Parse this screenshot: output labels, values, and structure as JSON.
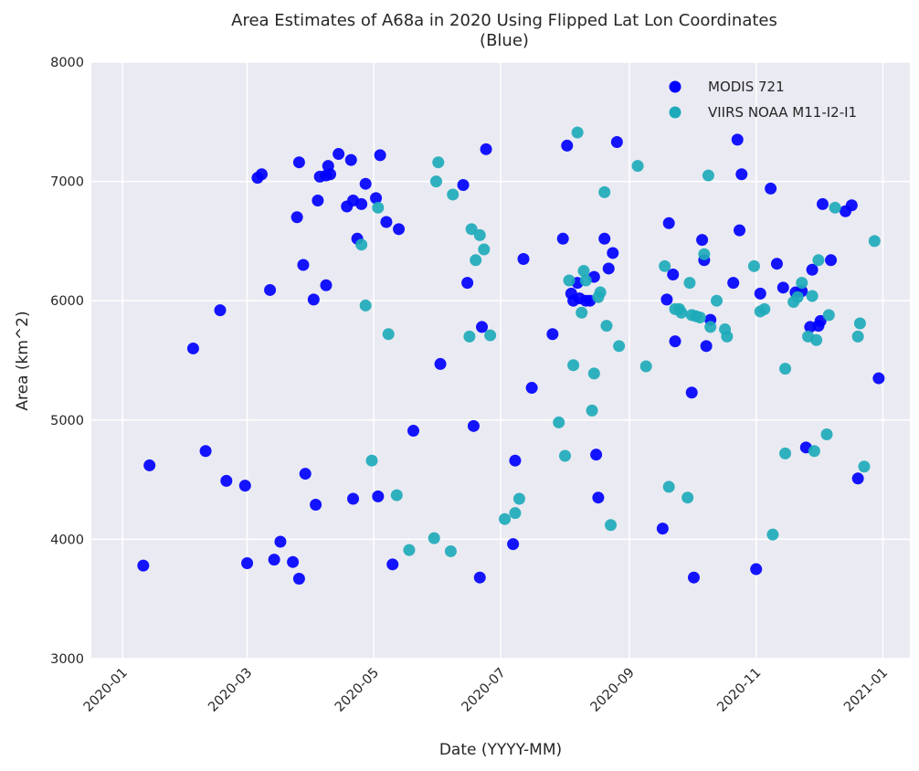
{
  "chart_data": {
    "type": "scatter",
    "title": "Area Estimates of A68a in 2020 Using Flipped Lat Lon Coordinates",
    "subtitle": "(Blue)",
    "xlabel": "Date (YYYY-MM)",
    "ylabel": "Area (km^2)",
    "x_axis_type": "date",
    "xlim": [
      "2019-12-17",
      "2021-01-14"
    ],
    "ylim": [
      3000,
      8000
    ],
    "x_ticks": [
      "2020-01",
      "2020-03",
      "2020-05",
      "2020-07",
      "2020-09",
      "2020-11",
      "2021-01"
    ],
    "y_ticks": [
      3000,
      4000,
      5000,
      6000,
      7000,
      8000
    ],
    "grid": true,
    "background_color": "#eaeaf2",
    "legend_position": "upper right",
    "series": [
      {
        "name": "MODIS 721",
        "color": "#0000ff",
        "points": [
          [
            "2020-01-11",
            3780
          ],
          [
            "2020-01-14",
            4620
          ],
          [
            "2020-02-04",
            5600
          ],
          [
            "2020-02-10",
            4740
          ],
          [
            "2020-02-17",
            5920
          ],
          [
            "2020-02-20",
            4490
          ],
          [
            "2020-02-29",
            4450
          ],
          [
            "2020-03-01",
            3800
          ],
          [
            "2020-03-06",
            7030
          ],
          [
            "2020-03-08",
            7060
          ],
          [
            "2020-03-12",
            6090
          ],
          [
            "2020-03-14",
            3830
          ],
          [
            "2020-03-17",
            3980
          ],
          [
            "2020-03-23",
            3810
          ],
          [
            "2020-03-25",
            6700
          ],
          [
            "2020-03-26",
            3670
          ],
          [
            "2020-03-26",
            7160
          ],
          [
            "2020-03-28",
            6300
          ],
          [
            "2020-03-29",
            4550
          ],
          [
            "2020-04-02",
            6010
          ],
          [
            "2020-04-03",
            4290
          ],
          [
            "2020-04-04",
            6840
          ],
          [
            "2020-04-05",
            7040
          ],
          [
            "2020-04-08",
            6130
          ],
          [
            "2020-04-08",
            7050
          ],
          [
            "2020-04-09",
            7130
          ],
          [
            "2020-04-10",
            7060
          ],
          [
            "2020-04-14",
            7230
          ],
          [
            "2020-04-18",
            6790
          ],
          [
            "2020-04-20",
            7180
          ],
          [
            "2020-04-21",
            6840
          ],
          [
            "2020-04-21",
            4340
          ],
          [
            "2020-04-23",
            6520
          ],
          [
            "2020-04-25",
            6810
          ],
          [
            "2020-04-27",
            6980
          ],
          [
            "2020-05-02",
            6860
          ],
          [
            "2020-05-03",
            4360
          ],
          [
            "2020-05-04",
            7220
          ],
          [
            "2020-05-07",
            6660
          ],
          [
            "2020-05-10",
            3790
          ],
          [
            "2020-05-13",
            6600
          ],
          [
            "2020-05-20",
            4910
          ],
          [
            "2020-06-02",
            5470
          ],
          [
            "2020-06-13",
            6970
          ],
          [
            "2020-06-15",
            6150
          ],
          [
            "2020-06-18",
            4950
          ],
          [
            "2020-06-21",
            3680
          ],
          [
            "2020-06-22",
            5780
          ],
          [
            "2020-06-24",
            7270
          ],
          [
            "2020-07-07",
            3960
          ],
          [
            "2020-07-08",
            4660
          ],
          [
            "2020-07-12",
            6350
          ],
          [
            "2020-07-16",
            5270
          ],
          [
            "2020-07-26",
            5720
          ],
          [
            "2020-07-31",
            6520
          ],
          [
            "2020-08-02",
            7300
          ],
          [
            "2020-08-04",
            6060
          ],
          [
            "2020-08-05",
            6000
          ],
          [
            "2020-08-07",
            6150
          ],
          [
            "2020-08-08",
            6020
          ],
          [
            "2020-08-11",
            6000
          ],
          [
            "2020-08-13",
            6000
          ],
          [
            "2020-08-15",
            6200
          ],
          [
            "2020-08-16",
            4710
          ],
          [
            "2020-08-17",
            4350
          ],
          [
            "2020-08-20",
            6520
          ],
          [
            "2020-08-22",
            6270
          ],
          [
            "2020-08-24",
            6400
          ],
          [
            "2020-08-26",
            7330
          ],
          [
            "2020-09-17",
            4090
          ],
          [
            "2020-09-19",
            6010
          ],
          [
            "2020-09-20",
            6650
          ],
          [
            "2020-09-22",
            6220
          ],
          [
            "2020-09-23",
            5660
          ],
          [
            "2020-10-01",
            5230
          ],
          [
            "2020-10-02",
            3680
          ],
          [
            "2020-10-06",
            6510
          ],
          [
            "2020-10-07",
            6340
          ],
          [
            "2020-10-08",
            5620
          ],
          [
            "2020-10-10",
            5840
          ],
          [
            "2020-10-21",
            6150
          ],
          [
            "2020-10-23",
            7350
          ],
          [
            "2020-10-24",
            6590
          ],
          [
            "2020-10-25",
            7060
          ],
          [
            "2020-11-01",
            3750
          ],
          [
            "2020-11-03",
            6060
          ],
          [
            "2020-11-08",
            6940
          ],
          [
            "2020-11-11",
            6310
          ],
          [
            "2020-11-14",
            6110
          ],
          [
            "2020-11-20",
            6070
          ],
          [
            "2020-11-23",
            6080
          ],
          [
            "2020-11-25",
            4770
          ],
          [
            "2020-11-27",
            5780
          ],
          [
            "2020-11-28",
            6260
          ],
          [
            "2020-12-01",
            5790
          ],
          [
            "2020-12-02",
            5830
          ],
          [
            "2020-12-03",
            6810
          ],
          [
            "2020-12-07",
            6340
          ],
          [
            "2020-12-14",
            6750
          ],
          [
            "2020-12-17",
            6800
          ],
          [
            "2020-12-20",
            4510
          ],
          [
            "2020-12-30",
            5350
          ]
        ]
      },
      {
        "name": "VIIRS NOAA M11-I2-I1",
        "color": "#1eaaba",
        "points": [
          [
            "2020-04-25",
            6470
          ],
          [
            "2020-04-27",
            5960
          ],
          [
            "2020-04-30",
            4660
          ],
          [
            "2020-05-03",
            6780
          ],
          [
            "2020-05-08",
            5720
          ],
          [
            "2020-05-12",
            4370
          ],
          [
            "2020-05-18",
            3910
          ],
          [
            "2020-05-30",
            4010
          ],
          [
            "2020-05-31",
            7000
          ],
          [
            "2020-06-01",
            7160
          ],
          [
            "2020-06-07",
            3900
          ],
          [
            "2020-06-08",
            6890
          ],
          [
            "2020-06-16",
            5700
          ],
          [
            "2020-06-17",
            6600
          ],
          [
            "2020-06-19",
            6340
          ],
          [
            "2020-06-21",
            6550
          ],
          [
            "2020-06-23",
            6430
          ],
          [
            "2020-06-26",
            5710
          ],
          [
            "2020-07-03",
            4170
          ],
          [
            "2020-07-08",
            4220
          ],
          [
            "2020-07-10",
            4340
          ],
          [
            "2020-07-29",
            4980
          ],
          [
            "2020-08-01",
            4700
          ],
          [
            "2020-08-03",
            6170
          ],
          [
            "2020-08-05",
            5460
          ],
          [
            "2020-08-07",
            7410
          ],
          [
            "2020-08-09",
            5900
          ],
          [
            "2020-08-10",
            6250
          ],
          [
            "2020-08-11",
            6170
          ],
          [
            "2020-08-14",
            5080
          ],
          [
            "2020-08-15",
            5390
          ],
          [
            "2020-08-17",
            6030
          ],
          [
            "2020-08-18",
            6070
          ],
          [
            "2020-08-20",
            6910
          ],
          [
            "2020-08-21",
            5790
          ],
          [
            "2020-08-23",
            4120
          ],
          [
            "2020-08-27",
            5620
          ],
          [
            "2020-09-05",
            7130
          ],
          [
            "2020-09-09",
            5450
          ],
          [
            "2020-09-18",
            6290
          ],
          [
            "2020-09-20",
            4440
          ],
          [
            "2020-09-23",
            5930
          ],
          [
            "2020-09-25",
            5930
          ],
          [
            "2020-09-26",
            5900
          ],
          [
            "2020-09-29",
            4350
          ],
          [
            "2020-09-30",
            6150
          ],
          [
            "2020-10-01",
            5880
          ],
          [
            "2020-10-03",
            5870
          ],
          [
            "2020-10-05",
            5860
          ],
          [
            "2020-10-07",
            6390
          ],
          [
            "2020-10-09",
            7050
          ],
          [
            "2020-10-10",
            5780
          ],
          [
            "2020-10-13",
            6000
          ],
          [
            "2020-10-17",
            5760
          ],
          [
            "2020-10-18",
            5700
          ],
          [
            "2020-10-31",
            6290
          ],
          [
            "2020-11-03",
            5910
          ],
          [
            "2020-11-05",
            5930
          ],
          [
            "2020-11-09",
            4040
          ],
          [
            "2020-11-15",
            4720
          ],
          [
            "2020-11-15",
            5430
          ],
          [
            "2020-11-19",
            5990
          ],
          [
            "2020-11-21",
            6030
          ],
          [
            "2020-11-23",
            6150
          ],
          [
            "2020-11-26",
            5700
          ],
          [
            "2020-11-28",
            6040
          ],
          [
            "2020-11-29",
            4740
          ],
          [
            "2020-11-30",
            5670
          ],
          [
            "2020-12-01",
            6340
          ],
          [
            "2020-12-05",
            4880
          ],
          [
            "2020-12-06",
            5880
          ],
          [
            "2020-12-09",
            6780
          ],
          [
            "2020-12-20",
            5700
          ],
          [
            "2020-12-21",
            5810
          ],
          [
            "2020-12-23",
            4610
          ],
          [
            "2020-12-28",
            6500
          ]
        ]
      }
    ]
  }
}
